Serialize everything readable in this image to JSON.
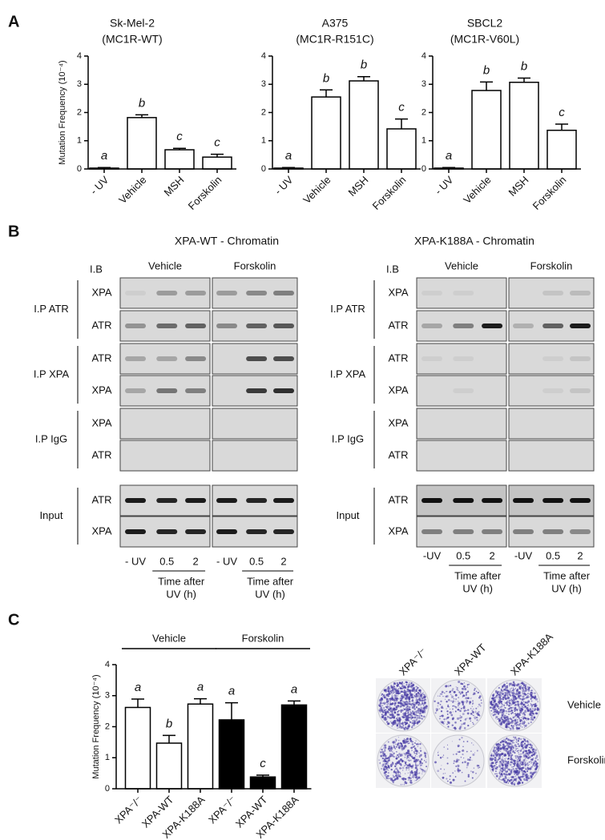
{
  "panel_labels": [
    "A",
    "B",
    "C"
  ],
  "chart_data": [
    {
      "type": "bar",
      "title": "Sk-Mel-2",
      "subtitle": "(MC1R-WT)",
      "y_label": "Mutation Frequency (10⁻⁴)",
      "categories": [
        "- UV",
        "Vehicle",
        "MSH",
        "Forskolin"
      ],
      "values": [
        0.03,
        1.82,
        0.68,
        0.42
      ],
      "errors": [
        0.02,
        0.1,
        0.05,
        0.1
      ],
      "annotations": [
        "a",
        "b",
        "c",
        "c"
      ],
      "color": "#ffffff",
      "ylim": [
        0,
        4
      ],
      "yticks": [
        0,
        1,
        2,
        3,
        4
      ]
    },
    {
      "type": "bar",
      "title": "A375",
      "subtitle": "(MC1R-R151C)",
      "categories": [
        "- UV",
        "Vehicle",
        "MSH",
        "Forskolin"
      ],
      "values": [
        0.03,
        2.55,
        3.12,
        1.42
      ],
      "errors": [
        0.02,
        0.25,
        0.15,
        0.35
      ],
      "annotations": [
        "a",
        "b",
        "b",
        "c"
      ],
      "color": "#ffffff",
      "ylim": [
        0,
        4
      ],
      "yticks": [
        0,
        1,
        2,
        3,
        4
      ]
    },
    {
      "type": "bar",
      "title": "SBCL2",
      "subtitle": "(MC1R-V60L)",
      "categories": [
        "- UV",
        "Vehicle",
        "MSH",
        "Forskolin"
      ],
      "values": [
        0.03,
        2.78,
        3.07,
        1.37
      ],
      "errors": [
        0.02,
        0.3,
        0.15,
        0.22
      ],
      "annotations": [
        "a",
        "b",
        "b",
        "c"
      ],
      "color": "#ffffff",
      "ylim": [
        0,
        4
      ],
      "yticks": [
        0,
        1,
        2,
        3,
        4
      ]
    },
    {
      "type": "grouped-bar",
      "y_label": "Mutation Frequency (10⁻⁴)",
      "categories": [
        "XPA⁻/⁻",
        "XPA-WT",
        "XPA-K188A"
      ],
      "series": [
        {
          "name": "Vehicle",
          "color": "#ffffff",
          "values": [
            2.62,
            1.47,
            2.73
          ],
          "errors": [
            0.27,
            0.25,
            0.17
          ],
          "annotations": [
            "a",
            "b",
            "a"
          ]
        },
        {
          "name": "Forskolin",
          "color": "#000000",
          "values": [
            2.22,
            0.38,
            2.7
          ],
          "errors": [
            0.55,
            0.06,
            0.13
          ],
          "annotations": [
            "a",
            "c",
            "a"
          ]
        }
      ],
      "ylim": [
        0,
        4
      ],
      "yticks": [
        0,
        1,
        2,
        3,
        4
      ]
    }
  ],
  "panel_b": {
    "blots": [
      {
        "title": "XPA-WT - Chromatin",
        "ib": "I.B",
        "conditions": [
          "Vehicle",
          "Forskolin"
        ],
        "lanes": [
          "- UV",
          "0.5",
          "2"
        ],
        "time_label": [
          "Time after",
          "UV (h)"
        ],
        "groups": [
          {
            "name": "I.P ATR",
            "rows": [
              {
                "label": "XPA",
                "bands": [
                  [
                    0.05,
                    0.3,
                    0.3
                  ],
                  [
                    0.3,
                    0.4,
                    0.45
                  ]
                ]
              },
              {
                "label": "ATR",
                "bands": [
                  [
                    0.35,
                    0.55,
                    0.6
                  ],
                  [
                    0.4,
                    0.6,
                    0.65
                  ]
                ]
              }
            ]
          },
          {
            "name": "I.P XPA",
            "rows": [
              {
                "label": "ATR",
                "bands": [
                  [
                    0.25,
                    0.25,
                    0.4
                  ],
                  [
                    0,
                    0.7,
                    0.7
                  ]
                ]
              },
              {
                "label": "XPA",
                "bands": [
                  [
                    0.25,
                    0.5,
                    0.45
                  ],
                  [
                    0,
                    0.8,
                    0.85
                  ]
                ]
              }
            ]
          },
          {
            "name": "I.P IgG",
            "rows": [
              {
                "label": "XPA",
                "bands": [
                  [
                    0,
                    0,
                    0
                  ],
                  [
                    0,
                    0,
                    0
                  ]
                ]
              },
              {
                "label": "ATR",
                "bands": [
                  [
                    0,
                    0,
                    0
                  ],
                  [
                    0,
                    0,
                    0
                  ]
                ]
              }
            ]
          },
          {
            "name": "Input",
            "rows": [
              {
                "label": "ATR",
                "bands": [
                  [
                    0.95,
                    0.9,
                    0.95
                  ],
                  [
                    0.95,
                    0.9,
                    0.95
                  ]
                ]
              },
              {
                "label": "XPA",
                "bands": [
                  [
                    0.95,
                    0.9,
                    0.9
                  ],
                  [
                    0.95,
                    0.9,
                    0.9
                  ]
                ]
              }
            ]
          }
        ]
      },
      {
        "title": "XPA-K188A - Chromatin",
        "ib": "I.B",
        "conditions": [
          "Vehicle",
          "Forskolin"
        ],
        "lanes": [
          "-UV",
          "0.5",
          "2"
        ],
        "time_label": [
          "Time after",
          "UV (h)"
        ],
        "groups": [
          {
            "name": "I.P ATR",
            "rows": [
              {
                "label": "XPA",
                "bands": [
                  [
                    0.05,
                    0.05,
                    0
                  ],
                  [
                    0,
                    0.1,
                    0.15
                  ]
                ]
              },
              {
                "label": "ATR",
                "bands": [
                  [
                    0.25,
                    0.45,
                    0.95
                  ],
                  [
                    0.2,
                    0.6,
                    0.95
                  ]
                ]
              }
            ]
          },
          {
            "name": "I.P XPA",
            "rows": [
              {
                "label": "ATR",
                "bands": [
                  [
                    0.05,
                    0.05,
                    0
                  ],
                  [
                    0,
                    0.05,
                    0.1
                  ]
                ]
              },
              {
                "label": "XPA",
                "bands": [
                  [
                    0,
                    0.05,
                    0
                  ],
                  [
                    0,
                    0.05,
                    0.1
                  ]
                ]
              }
            ]
          },
          {
            "name": "I.P IgG",
            "rows": [
              {
                "label": "XPA",
                "bands": [
                  [
                    0,
                    0,
                    0
                  ],
                  [
                    0,
                    0,
                    0
                  ]
                ]
              },
              {
                "label": "ATR",
                "bands": [
                  [
                    0,
                    0,
                    0
                  ],
                  [
                    0,
                    0,
                    0
                  ]
                ]
              }
            ]
          },
          {
            "name": "Input",
            "rows": [
              {
                "label": "ATR",
                "bands": [
                  [
                    1,
                    1,
                    1
                  ],
                  [
                    1,
                    1,
                    1
                  ]
                ]
              },
              {
                "label": "XPA",
                "bands": [
                  [
                    0.45,
                    0.45,
                    0.45
                  ],
                  [
                    0.45,
                    0.45,
                    0.4
                  ]
                ]
              }
            ]
          }
        ]
      }
    ]
  },
  "panel_c_image": {
    "columns": [
      "XPA⁻/⁻",
      "XPA-WT",
      "XPA-K188A"
    ],
    "rows": [
      "Vehicle",
      "Forskolin"
    ]
  }
}
